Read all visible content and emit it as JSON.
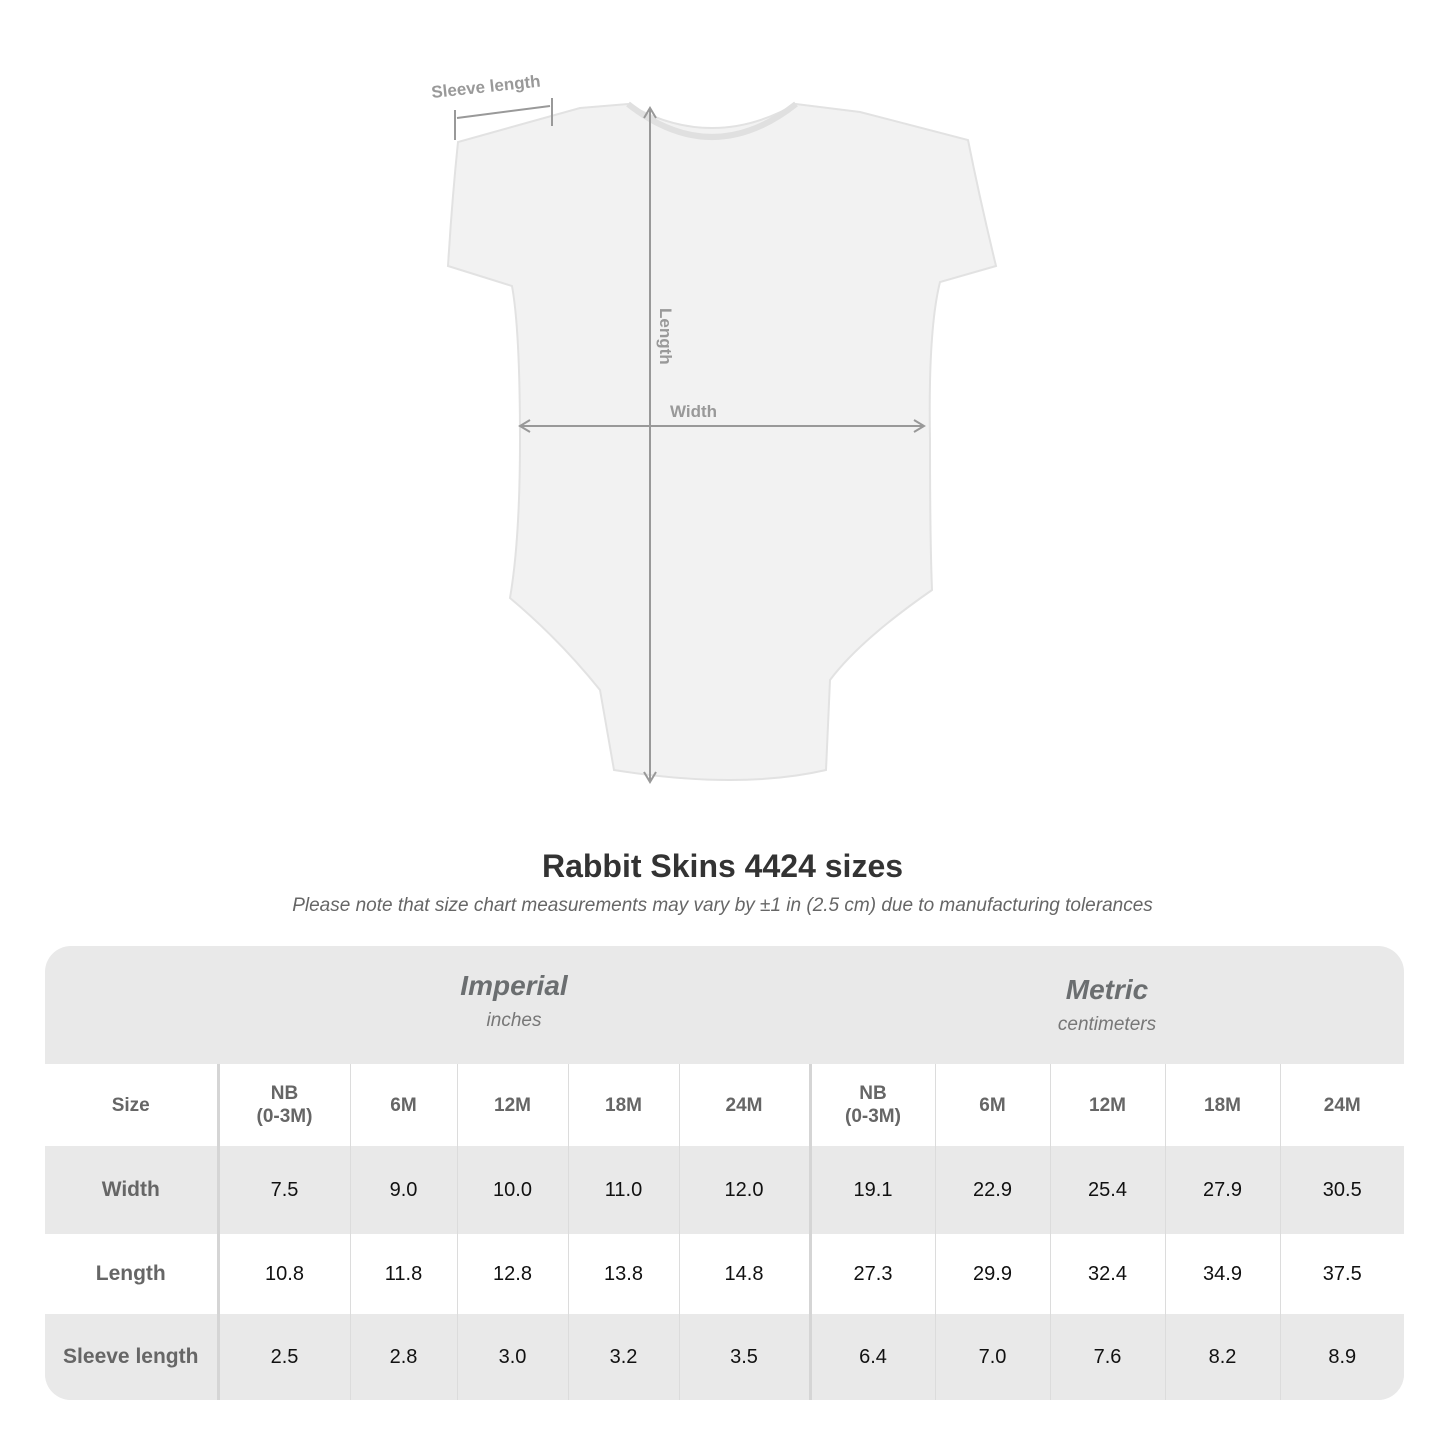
{
  "diagram": {
    "labels": {
      "sleeve": "Sleeve length",
      "length": "Length",
      "width": "Width"
    },
    "colors": {
      "garment": "#f2f2f2",
      "arrows": "#999999"
    }
  },
  "title": "Rabbit Skins 4424 sizes",
  "subtitle": "Please note that size chart measurements may vary by ±1 in (2.5 cm) due to manufacturing tolerances",
  "table": {
    "imperial": {
      "name": "Imperial",
      "unit": "inches"
    },
    "metric": {
      "name": "Metric",
      "unit": "centimeters"
    },
    "size_label": "Size",
    "sizes": [
      [
        "NB",
        "(0-3M)"
      ],
      [
        "6M",
        ""
      ],
      [
        "12M",
        ""
      ],
      [
        "18M",
        ""
      ],
      [
        "24M",
        ""
      ]
    ],
    "rows": [
      {
        "label": "Width",
        "imperial": [
          "7.5",
          "9.0",
          "10.0",
          "11.0",
          "12.0"
        ],
        "metric": [
          "19.1",
          "22.9",
          "25.4",
          "27.9",
          "30.5"
        ]
      },
      {
        "label": "Length",
        "imperial": [
          "10.8",
          "11.8",
          "12.8",
          "13.8",
          "14.8"
        ],
        "metric": [
          "27.3",
          "29.9",
          "32.4",
          "34.9",
          "37.5"
        ]
      },
      {
        "label": "Sleeve length",
        "imperial": [
          "2.5",
          "2.8",
          "3.0",
          "3.2",
          "3.5"
        ],
        "metric": [
          "6.4",
          "7.0",
          "7.6",
          "8.2",
          "8.9"
        ]
      }
    ]
  }
}
